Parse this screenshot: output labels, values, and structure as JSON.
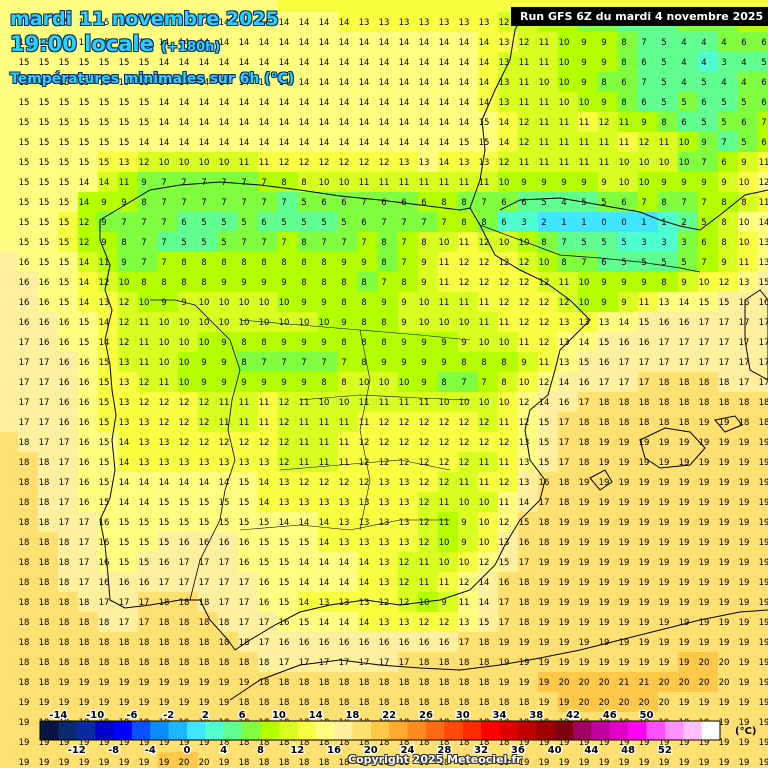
{
  "header": {
    "date_line": "mardi 11 novembre 2025",
    "time_line": "19:00 locale",
    "offset": "(+180h)",
    "parameter": "Températures minimales sur 6h (°C)"
  },
  "run_info": "Run GFS 6Z du mardi 4 novembre 2025",
  "copyright": "Copyright 2025 Meteociel.fr",
  "legend": {
    "unit": "(°C)",
    "top_labels": [
      "-14",
      "-10",
      "-6",
      "-2",
      "2",
      "6",
      "10",
      "14",
      "18",
      "22",
      "26",
      "30",
      "34",
      "38",
      "42",
      "46",
      "50"
    ],
    "bottom_labels": [
      "-12",
      "-8",
      "-4",
      "0",
      "4",
      "8",
      "12",
      "16",
      "20",
      "24",
      "28",
      "32",
      "36",
      "40",
      "44",
      "48",
      "52"
    ],
    "colors": [
      "#0a1440",
      "#0a2a70",
      "#0a2aa0",
      "#0000c8",
      "#0000ff",
      "#0a50ff",
      "#0a8cff",
      "#1eb4ff",
      "#40e6ff",
      "#50ffd0",
      "#60ff90",
      "#80ff40",
      "#b4ff00",
      "#d8ff20",
      "#f8ff40",
      "#ffff80",
      "#fff0a0",
      "#ffe070",
      "#ffc848",
      "#ffaa30",
      "#ff8c1e",
      "#ff6a14",
      "#ff4a0a",
      "#ff2a00",
      "#ff0000",
      "#e00000",
      "#c00000",
      "#a00000",
      "#800010",
      "#a00060",
      "#c000a0",
      "#e000c8",
      "#ff00f0",
      "#ff50ff",
      "#ff90ff",
      "#ffc0ff",
      "#ffffff"
    ]
  },
  "map_data": {
    "origin_x": -12,
    "step_x": 20,
    "origin_y": 2,
    "step_y": 20,
    "rows": [
      "15 15 15 15 15 15 15 15 15 14 14 14 14 14 14 13 13 13 13 13 13 13 13 13 13 13 13 13 13 13 13 13 13 13 13 13 13 13 13 13",
      "15 15 15 15 15 15 14 14 14 14 14 14 14 14 14 14 14 14 13 13 13 13 13 13 13 12 11 10 9 8 7 6 5 5 5 7 6 6 8 8",
      "15 15 15 15 15 15 15 15 14 14 14 14 14 14 14 14 14 14 14 14 14 14 14 14 14 13 12 11 10 9 9 8 7 5 4 4 4 6 6 6",
      "15 15 15 15 15 15 15 15 14 14 14 14 14 14 14 14 14 14 14 14 14 14 14 14 14 13 11 11 10 9 9 8 6 5 4 4 3 4 5 5",
      "15 15 15 15 15 15 15 15 14 14 14 14 14 14 14 14 14 14 14 14 14 14 14 14 14 13 11 10 10 9 8 6 7 5 4 5 4 4 6 6",
      "15 15 15 15 15 15 15 15 14 14 14 14 14 14 14 14 14 14 14 14 14 14 14 14 14 13 11 11 10 10 9 8 6 5 5 6 5 5 6 6",
      "15 15 15 15 15 15 15 15 14 14 14 14 14 14 14 14 14 14 14 14 14 14 14 14 15 14 12 11 11 11 12 11 9 8 6 5 5 6 7 8",
      "15 15 15 15 15 15 15 14 14 14 14 14 14 14 14 14 14 14 14 14 14 14 14 15 15 14 12 11 11 11 11 11 12 11 10 9 7 5 6 8",
      "15 15 15 15 15 15 13 12 10 10 10 10 11 11 12 12 12 12 12 12 13 13 14 13 13 12 11 11 11 11 11 10 10 10 10 7 6 9 11 13",
      "15 15 15 15 14 14 11 9 7 7 7 7 7 7 8 8 10 10 11 11 11 11 11 11 11 10 9 9 9 9 9 10 10 9 9 9 9 10 12 14",
      "15 15 15 15 14 9 9 8 7 7 7 7 7 7 7 5 6 6 7 6 6 6 8 8 7 6 6 5 4 5 5 6 7 8 7 7 8 8 11 12",
      "15 15 15 15 12 9 7 7 7 6 5 5 5 6 5 5 5 5 6 7 7 7 7 8 8 6 3 2 1 1 0 0 1 1 2 5 8 10 14 15",
      "15 15 15 15 12 9 8 7 7 5 5 5 7 7 7 8 7 7 7 8 7 8 10 11 12 10 10 8 7 5 5 5 3 3 3 6 8 10 13 15",
      "16 16 15 15 14 11 9 7 7 8 8 8 8 8 8 8 8 9 9 8 7 9 11 12 12 12 12 10 8 7 6 5 5 5 5 7 9 11 13 15",
      "16 16 16 15 14 12 10 8 8 8 8 9 9 9 9 8 8 8 8 7 8 9 11 12 12 12 12 12 11 10 9 9 9 8 9 10 12 13 15 16",
      "16 16 16 15 14 13 12 10 9 9 10 10 10 10 10 9 9 8 8 9 9 10 11 11 11 12 12 12 12 10 9 9 11 13 14 15 15 16 16 16",
      "16 16 16 16 15 14 12 11 10 10 10 10 10 10 10 10 10 9 8 8 9 10 10 10 11 11 12 12 13 13 13 14 15 16 16 17 17 17 17 17",
      "17 17 16 16 15 14 12 11 10 10 10 9 8 8 9 9 9 8 8 8 9 9 9 9 10 10 11 12 13 14 15 16 16 17 17 17 17 17 17 17",
      "17 17 17 16 16 15 13 11 10 10 9 9 8 7 7 7 7 7 8 9 9 9 9 8 8 8 9 11 13 15 16 17 17 17 17 17 17 17 17 17",
      "17 17 17 16 16 15 13 12 11 10 9 9 9 9 9 9 8 8 10 10 10 9 8 7 7 8 10 12 14 16 17 17 17 18 18 18 18 17 17 17",
      "17 17 17 16 16 15 13 12 12 12 12 11 11 11 12 11 10 10 11 11 11 11 10 10 10 10 12 14 16 17 18 18 18 18 18 18 18 18 18 18",
      "18 17 17 16 16 15 13 13 12 12 12 11 11 11 12 11 11 11 11 12 12 12 12 12 12 11 12 15 17 18 18 18 18 18 18 19 19 18 18 18",
      "18 18 17 17 16 15 14 13 13 12 12 12 12 12 12 11 11 11 12 12 12 12 12 12 12 12 13 15 17 18 19 19 19 19 19 19 19 19 19 19",
      "18 18 18 17 16 15 14 13 13 13 13 13 13 13 12 11 11 11 12 12 12 12 12 12 11 11 13 15 17 18 19 19 19 19 19 19 19 19 19 19",
      "18 18 18 17 16 15 14 14 14 14 14 14 15 14 13 12 12 12 12 13 13 12 12 11 11 12 13 16 18 19 19 19 19 19 19 19 19 19 19 19",
      "18 18 18 17 16 15 14 14 15 15 15 15 15 14 13 13 13 13 13 13 13 12 11 10 10 11 14 17 18 19 19 19 19 19 19 19 19 19 19 19",
      "18 18 18 17 17 16 15 15 15 15 15 15 15 15 14 14 14 13 13 13 13 12 11 9 10 12 15 18 19 19 19 19 19 19 19 19 19 19 19 19",
      "18 18 18 18 17 16 15 15 15 16 16 16 16 15 15 15 14 13 13 13 13 12 10 9 10 13 16 18 19 19 19 19 19 19 19 19 19 19 19 19",
      "18 18 18 18 17 16 15 15 16 17 17 17 16 15 15 14 14 14 14 13 12 11 10 10 12 15 17 19 19 19 19 19 19 19 19 19 19 19 19 19",
      "18 18 18 18 17 16 16 16 17 17 17 17 17 16 15 14 14 14 14 13 12 11 11 12 14 16 18 19 19 19 19 19 19 19 19 19 19 19 19 19",
      "18 18 18 18 18 17 17 17 18 18 18 17 17 16 15 14 13 13 13 12 12 10 9 11 14 17 18 19 19 19 19 19 19 19 19 19 19 19 19 19",
      "18 18 18 18 18 18 17 17 18 18 18 18 17 17 16 15 14 14 14 13 13 12 12 13 15 17 18 19 19 19 19 19 19 19 19 19 19 19 19 19",
      "18 18 18 18 18 18 18 18 18 18 18 18 18 17 16 16 16 16 16 16 16 16 16 17 18 19 19 19 19 19 19 19 19 19 19 19 19 19 19 19",
      "18 18 18 18 18 18 18 18 18 18 18 18 18 18 17 17 17 17 17 17 17 18 18 18 18 19 19 19 19 19 19 19 19 19 19 20 20 19 19 19",
      "18 18 18 19 19 19 19 19 19 19 19 19 19 18 18 18 18 18 18 18 18 18 18 18 18 19 19 19 20 20 20 21 21 20 20 20 20 19 19 19",
      "19 19 19 19 19 19 19 19 19 19 19 19 18 18 18 18 18 18 18 18 18 18 18 18 18 18 18 19 19 20 20 20 20 20 19 19 19 19 19 19",
      "19 19 19 19 19 19 19 19 19 19 19 18 18 18 18 18 18 18 18 18 18 18 18 18 18 18 19 19 19 19 19 19 19 19 19 19 19 19 19 19",
      "19 19 19 19 19 19 19 19 19 19 19 18 18 18 18 18 18 18 18 18 18 18 18 18 18 18 19 19 19 19 19 19 19 19 19 19 19 19 19 19",
      "19 19 19 19 19 19 19 19 19 20 20 19 18 18 18 18 18 18 18 18 18 18 18 18 18 18 19 19 19 19 19 19 19 19 19 19 19 19 19 19"
    ]
  }
}
